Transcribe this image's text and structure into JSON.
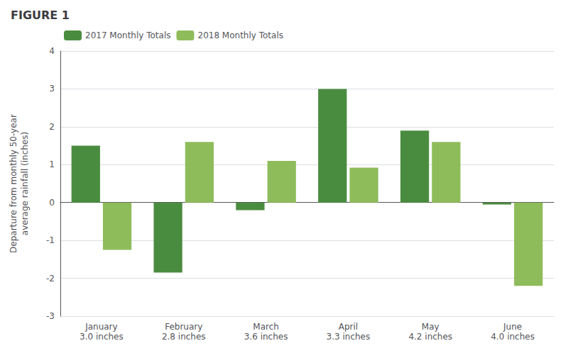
{
  "chart_data": {
    "type": "bar",
    "title": "FIGURE 1",
    "categories": [
      "January\n3.0 inches",
      "February\n2.8 inches",
      "March\n3.6 inches",
      "April\n3.3 inches",
      "May\n4.2 inches",
      "June\n4.0 inches"
    ],
    "series": [
      {
        "name": "2017 Monthly Totals",
        "color": "#4a8c3f",
        "values": [
          1.5,
          -1.85,
          -0.2,
          3.0,
          1.9,
          -0.05
        ]
      },
      {
        "name": "2018 Monthly Totals",
        "color": "#8fbc5a",
        "values": [
          -1.25,
          1.6,
          1.1,
          0.92,
          1.6,
          -2.2
        ]
      }
    ],
    "ylabel": "Departure from monthly 50-year\naverage rainfall (inches)",
    "ylim": [
      -3,
      4
    ],
    "yticks": [
      -3,
      -2,
      -1,
      0,
      1,
      2,
      3,
      4
    ],
    "grid": true,
    "legend": "upper left"
  }
}
